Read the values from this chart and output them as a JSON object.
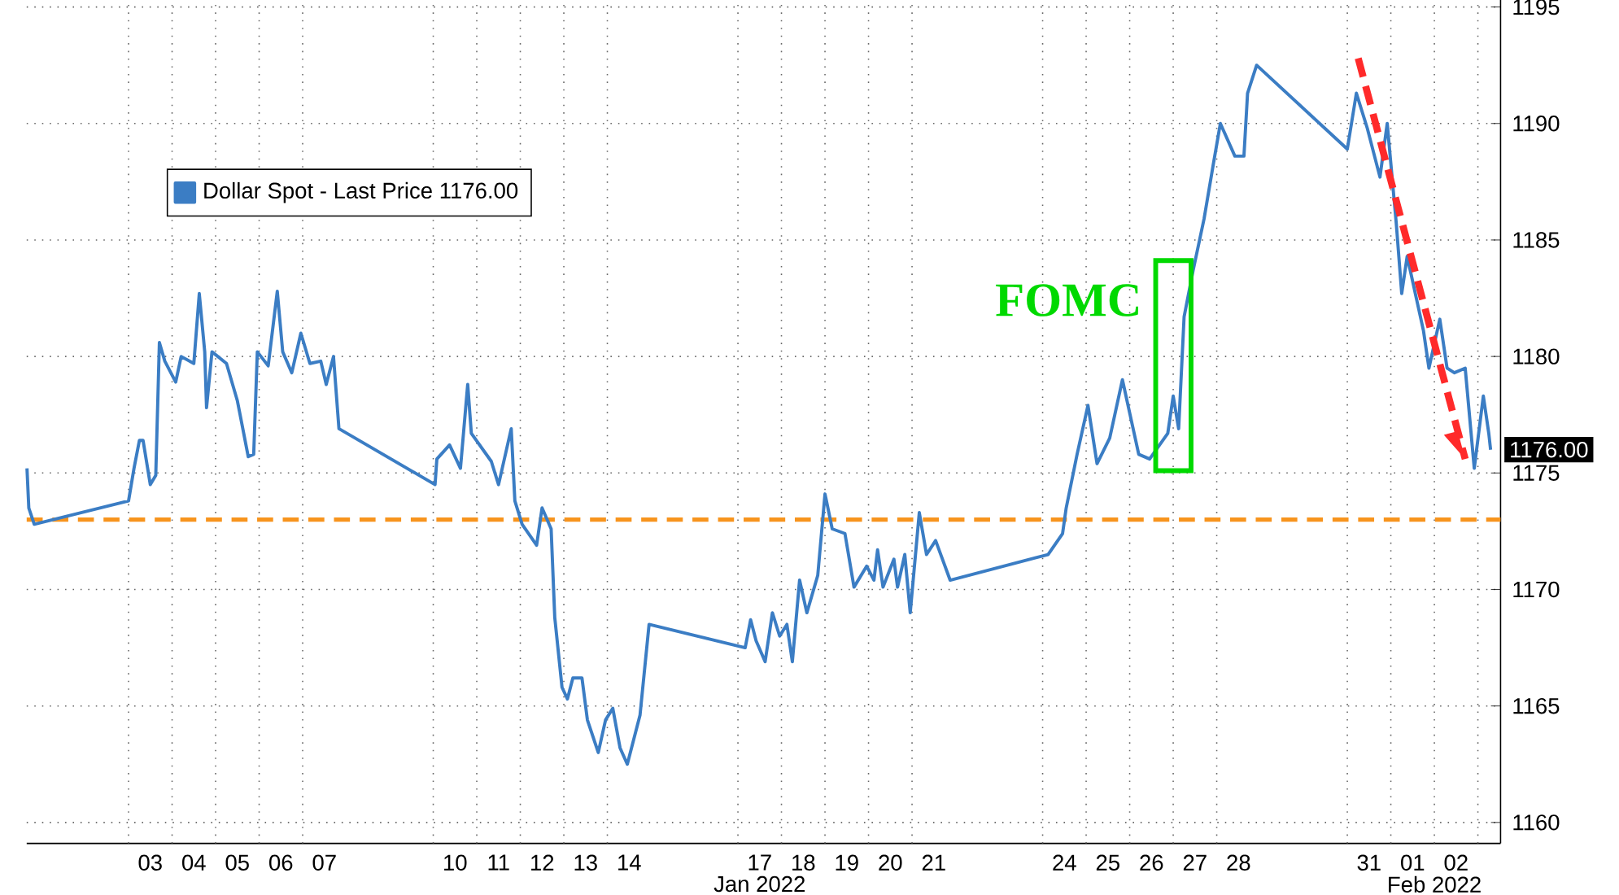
{
  "chart_data": {
    "type": "line",
    "series": [
      {
        "name": "Dollar Spot - Last Price 1176.00",
        "color": "#3b7dc4",
        "x": [
          "2021-12-31T16:00",
          "2021-12-31T17:00",
          "2021-12-31T20:00",
          "2022-01-03T00:00",
          "2022-01-03T03:00",
          "2022-01-03T06:00",
          "2022-01-03T08:00",
          "2022-01-03T12:00",
          "2022-01-03T15:00",
          "2022-01-03T17:00",
          "2022-01-03T20:00",
          "2022-01-04T02:00",
          "2022-01-04T05:00",
          "2022-01-04T12:00",
          "2022-01-04T15:00",
          "2022-01-04T18:00",
          "2022-01-04T19:00",
          "2022-01-04T22:00",
          "2022-01-05T06:00",
          "2022-01-05T12:00",
          "2022-01-05T18:00",
          "2022-01-05T21:00",
          "2022-01-05T23:00",
          "2022-01-06T05:00",
          "2022-01-06T10:00",
          "2022-01-06T13:00",
          "2022-01-06T18:00",
          "2022-01-06T23:00",
          "2022-01-07T04:00",
          "2022-01-07T10:00",
          "2022-01-07T13:00",
          "2022-01-07T17:00",
          "2022-01-07T20:00",
          "2022-01-10T01:00",
          "2022-01-10T02:00",
          "2022-01-10T09:00",
          "2022-01-10T15:00",
          "2022-01-10T19:00",
          "2022-01-10T21:00",
          "2022-01-11T08:00",
          "2022-01-11T12:00",
          "2022-01-11T19:00",
          "2022-01-11T21:00",
          "2022-01-12T01:00",
          "2022-01-12T09:00",
          "2022-01-12T12:00",
          "2022-01-12T17:00",
          "2022-01-12T19:00",
          "2022-01-12T23:00",
          "2022-01-13T02:00",
          "2022-01-13T05:00",
          "2022-01-13T10:00",
          "2022-01-13T13:00",
          "2022-01-13T19:00",
          "2022-01-13T23:00",
          "2022-01-14T03:00",
          "2022-01-14T07:00",
          "2022-01-14T11:00",
          "2022-01-14T18:00",
          "2022-01-14T23:00",
          "2022-01-17T04:00",
          "2022-01-17T07:00",
          "2022-01-17T10:00",
          "2022-01-17T15:00",
          "2022-01-17T19:00",
          "2022-01-17T23:00",
          "2022-01-18T03:00",
          "2022-01-18T06:00",
          "2022-01-18T10:00",
          "2022-01-18T14:00",
          "2022-01-18T20:00",
          "2022-01-19T00:00",
          "2022-01-19T04:00",
          "2022-01-19T11:00",
          "2022-01-19T16:00",
          "2022-01-19T23:00",
          "2022-01-20T03:00",
          "2022-01-20T05:00",
          "2022-01-20T08:00",
          "2022-01-20T14:00",
          "2022-01-20T16:00",
          "2022-01-20T20:00",
          "2022-01-20T23:00",
          "2022-01-21T04:00",
          "2022-01-21T08:00",
          "2022-01-21T13:00",
          "2022-01-21T21:00",
          "2022-01-24T03:00",
          "2022-01-24T11:00",
          "2022-01-24T13:00",
          "2022-01-24T19:00",
          "2022-01-25T01:00",
          "2022-01-25T06:00",
          "2022-01-25T13:00",
          "2022-01-25T20:00",
          "2022-01-26T05:00",
          "2022-01-26T11:00",
          "2022-01-26T21:00",
          "2022-01-27T00:00",
          "2022-01-27T03:00",
          "2022-01-27T06:00",
          "2022-01-27T11:00",
          "2022-01-27T17:00",
          "2022-01-27T22:00",
          "2022-01-28T02:00",
          "2022-01-28T10:00",
          "2022-01-28T15:00",
          "2022-01-28T17:00",
          "2022-01-28T22:00",
          "2022-01-31T00:00",
          "2022-01-31T05:00",
          "2022-01-31T11:00",
          "2022-01-31T18:00",
          "2022-01-31T22:00",
          "2022-02-01T03:00",
          "2022-02-01T06:00",
          "2022-02-01T09:00",
          "2022-02-01T18:00",
          "2022-02-01T21:00",
          "2022-02-02T03:00",
          "2022-02-02T07:00",
          "2022-02-02T11:00",
          "2022-02-02T17:00",
          "2022-02-02T22:00",
          "2022-02-03T03:00",
          "2022-02-03T06:00",
          "2022-02-03T07:00"
        ],
        "values": [
          1175.2,
          1173.5,
          1172.8,
          1173.8,
          1175.2,
          1176.4,
          1176.4,
          1174.5,
          1174.9,
          1180.6,
          1179.8,
          1178.9,
          1180.0,
          1179.7,
          1182.7,
          1180.2,
          1177.8,
          1180.2,
          1179.7,
          1178.1,
          1175.7,
          1175.8,
          1180.2,
          1179.6,
          1182.8,
          1180.2,
          1179.3,
          1181.0,
          1179.7,
          1179.8,
          1178.8,
          1180.0,
          1176.9,
          1174.5,
          1175.6,
          1176.2,
          1175.2,
          1178.8,
          1176.7,
          1175.5,
          1174.5,
          1176.9,
          1173.8,
          1172.8,
          1171.9,
          1173.5,
          1172.6,
          1168.8,
          1165.8,
          1165.3,
          1166.2,
          1166.2,
          1164.4,
          1163.0,
          1164.4,
          1164.9,
          1163.2,
          1162.5,
          1164.6,
          1168.5,
          1167.5,
          1168.7,
          1167.8,
          1166.9,
          1169.0,
          1168.0,
          1168.5,
          1166.9,
          1170.4,
          1169.0,
          1170.6,
          1174.1,
          1172.6,
          1172.4,
          1170.1,
          1171.0,
          1170.4,
          1171.7,
          1170.1,
          1171.3,
          1170.1,
          1171.5,
          1169.0,
          1173.3,
          1171.5,
          1172.1,
          1170.4,
          1171.5,
          1172.4,
          1173.5,
          1175.8,
          1177.9,
          1175.4,
          1176.5,
          1179.0,
          1175.8,
          1175.6,
          1176.7,
          1178.3,
          1176.9,
          1181.7,
          1183.7,
          1185.9,
          1188.2,
          1190.0,
          1188.6,
          1188.6,
          1191.3,
          1192.5,
          1188.9,
          1191.3,
          1189.8,
          1187.7,
          1190.0,
          1185.7,
          1182.7,
          1184.3,
          1181.1,
          1179.5,
          1181.6,
          1179.5,
          1179.3,
          1179.5,
          1175.2,
          1178.3,
          1176.7,
          1176.0
        ]
      },
      {
        "color": "#ff2a2a",
        "line_style": "dashed",
        "x": [
          "2022-01-31T06:00",
          "2022-02-02T17:00"
        ],
        "values": [
          1192.8,
          1175.6
        ]
      }
    ],
    "xlim": [
      "2021-12-31T15:50",
      "2022-02-03T12:30"
    ],
    "ylim": [
      1159.1,
      1195.3
    ],
    "xticks": [
      {
        "value": "2022-01-03",
        "label": null
      },
      {
        "value": "2022-01-03T12:00",
        "label": "03"
      },
      {
        "value": "2022-01-04",
        "label": null
      },
      {
        "value": "2022-01-04T12:00",
        "label": "04"
      },
      {
        "value": "2022-01-05",
        "label": null
      },
      {
        "value": "2022-01-05T12:00",
        "label": "05"
      },
      {
        "value": "2022-01-06",
        "label": null
      },
      {
        "value": "2022-01-06T12:00",
        "label": "06"
      },
      {
        "value": "2022-01-07",
        "label": null
      },
      {
        "value": "2022-01-07T12:00",
        "label": "07"
      },
      {
        "value": "2022-01-10",
        "label": null
      },
      {
        "value": "2022-01-10T12:00",
        "label": "10"
      },
      {
        "value": "2022-01-11",
        "label": null
      },
      {
        "value": "2022-01-11T12:00",
        "label": "11"
      },
      {
        "value": "2022-01-12",
        "label": null
      },
      {
        "value": "2022-01-12T12:00",
        "label": "12"
      },
      {
        "value": "2022-01-13",
        "label": null
      },
      {
        "value": "2022-01-13T12:00",
        "label": "13"
      },
      {
        "value": "2022-01-14",
        "label": null
      },
      {
        "value": "2022-01-14T12:00",
        "label": "14"
      },
      {
        "value": "2022-01-17",
        "label": null
      },
      {
        "value": "2022-01-17T12:00",
        "label": "17"
      },
      {
        "value": "2022-01-18",
        "label": null
      },
      {
        "value": "2022-01-18T12:00",
        "label": "18"
      },
      {
        "value": "2022-01-19",
        "label": null
      },
      {
        "value": "2022-01-19T12:00",
        "label": "19"
      },
      {
        "value": "2022-01-20",
        "label": null
      },
      {
        "value": "2022-01-20T12:00",
        "label": "20"
      },
      {
        "value": "2022-01-21",
        "label": null
      },
      {
        "value": "2022-01-21T12:00",
        "label": "21"
      },
      {
        "value": "2022-01-24",
        "label": null
      },
      {
        "value": "2022-01-24T12:00",
        "label": "24"
      },
      {
        "value": "2022-01-25",
        "label": null
      },
      {
        "value": "2022-01-25T12:00",
        "label": "25"
      },
      {
        "value": "2022-01-26",
        "label": null
      },
      {
        "value": "2022-01-26T12:00",
        "label": "26"
      },
      {
        "value": "2022-01-27",
        "label": null
      },
      {
        "value": "2022-01-27T12:00",
        "label": "27"
      },
      {
        "value": "2022-01-28",
        "label": null
      },
      {
        "value": "2022-01-28T12:00",
        "label": "28"
      },
      {
        "value": "2022-01-31",
        "label": null
      },
      {
        "value": "2022-01-31T12:00",
        "label": "31"
      },
      {
        "value": "2022-02-01",
        "label": null
      },
      {
        "value": "2022-02-01T12:00",
        "label": "01"
      },
      {
        "value": "2022-02-02",
        "label": null
      },
      {
        "value": "2022-02-02T12:00",
        "label": "02"
      },
      {
        "value": "2022-02-03",
        "label": null
      }
    ],
    "yticks": [
      1160,
      1165,
      1170,
      1175,
      1180,
      1185,
      1190,
      1195
    ],
    "grid": true,
    "legend": "top left",
    "ref_lines": [
      {
        "axis": "y",
        "value": 1173,
        "color": "#f7941d",
        "line_style": "dashed"
      }
    ],
    "annotations": [
      "FOMC",
      "1176.00",
      "Jan 2022",
      "Feb 2022"
    ]
  }
}
